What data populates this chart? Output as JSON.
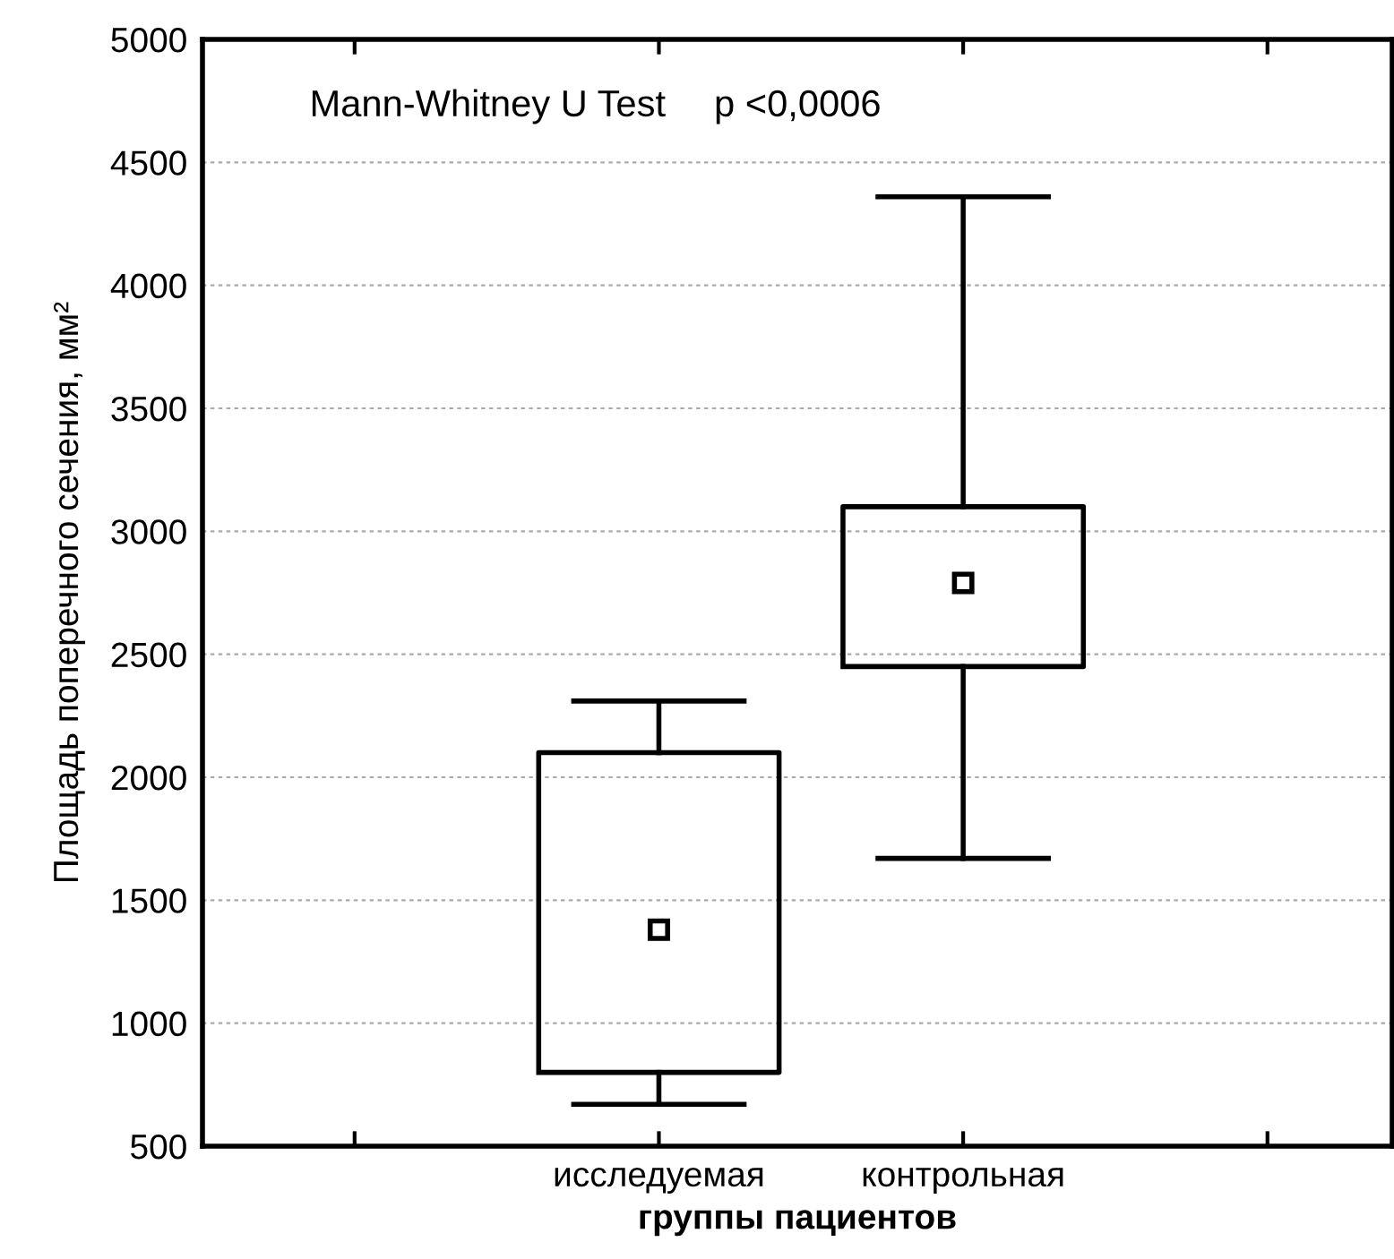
{
  "chart_data": {
    "type": "box",
    "categories": [
      "исследуемая",
      "контрольная"
    ],
    "boxes": [
      {
        "low": 670,
        "q1": 800,
        "median": 1380,
        "q3": 2100,
        "high": 2310
      },
      {
        "low": 1670,
        "q1": 2450,
        "median": 2790,
        "q3": 3100,
        "high": 4360
      }
    ],
    "color": "#000000",
    "marker": "square",
    "xlabel": "группы пациентов",
    "ylabel": "Площадь поперечного сечения, мм²",
    "ylim": [
      500,
      5000
    ],
    "yticks": [
      500,
      1000,
      1500,
      2000,
      2500,
      3000,
      3500,
      4000,
      4500,
      5000
    ],
    "grid": "y",
    "annotations": [
      "Mann-Whitney U Test",
      "p <0,0006"
    ]
  }
}
